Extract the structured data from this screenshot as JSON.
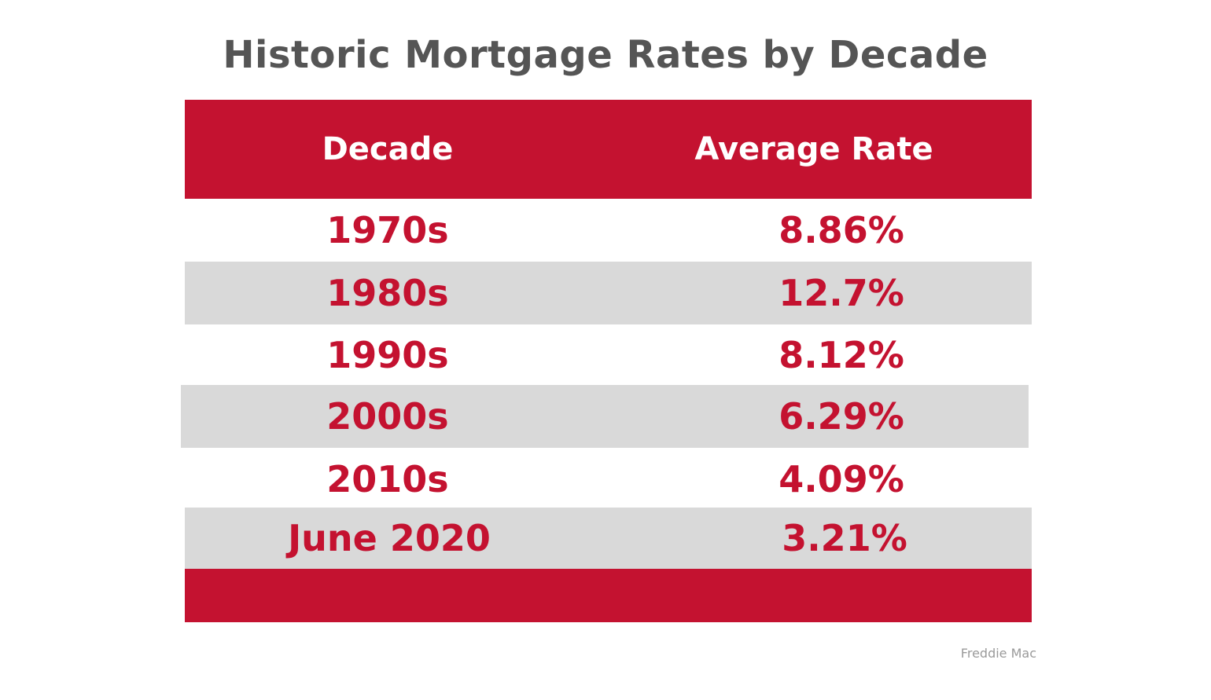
{
  "chart_data": {
    "type": "table",
    "title": "Historic Mortgage Rates by Decade",
    "columns": [
      "Decade",
      "Average Rate"
    ],
    "rows": [
      {
        "decade": "1970s",
        "rate": "8.86%"
      },
      {
        "decade": "1980s",
        "rate": "12.7%"
      },
      {
        "decade": "1990s",
        "rate": "8.12%"
      },
      {
        "decade": "2000s",
        "rate": "6.29%"
      },
      {
        "decade": "2010s",
        "rate": "4.09%"
      },
      {
        "decade": "June 2020",
        "rate": "3.21%"
      }
    ],
    "source": "Freddie Mac"
  },
  "colors": {
    "accent": "#c41230",
    "shade": "#d9d9d9",
    "title": "#555555"
  }
}
